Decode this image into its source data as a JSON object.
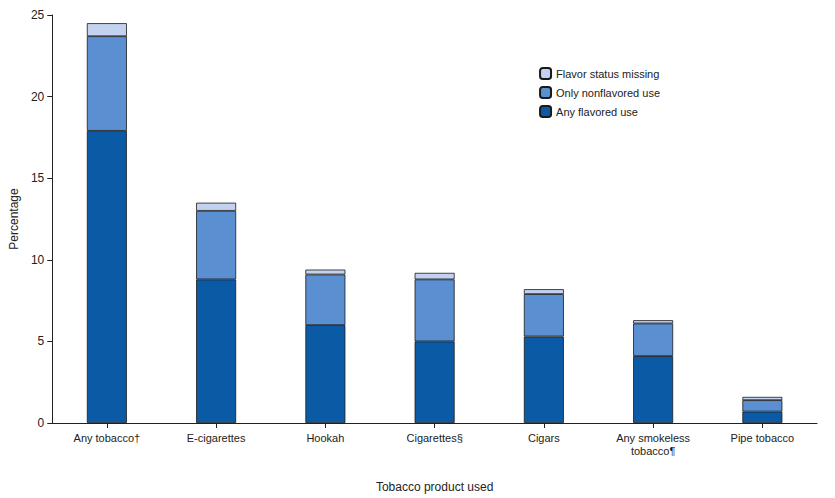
{
  "chart_data": {
    "type": "bar",
    "x_label": "Tobacco product used",
    "y_label": "Percentage",
    "categories": [
      "Any tobacco†",
      "E-cigarettes",
      "Hookah",
      "Cigarettes§",
      "Cigars",
      "Any smokeless\ntobacco¶",
      "Pipe tobacco"
    ],
    "series": [
      {
        "name": "Any flavored use",
        "color": "#0b5aa6",
        "values": [
          17.9,
          8.8,
          6.0,
          5.0,
          5.3,
          4.1,
          0.7
        ]
      },
      {
        "name": "Only nonflavored use",
        "color": "#5a8fd2",
        "values": [
          5.8,
          4.2,
          3.1,
          3.8,
          2.6,
          2.0,
          0.7
        ]
      },
      {
        "name": "Flavor status missing",
        "color": "#c3d2ef",
        "values": [
          0.8,
          0.5,
          0.3,
          0.4,
          0.3,
          0.2,
          0.2
        ]
      }
    ],
    "stacked": true,
    "ylim": [
      0,
      25
    ],
    "yticks": [
      0,
      5,
      10,
      15,
      20,
      25
    ],
    "grid": false,
    "legend": "upper right"
  }
}
